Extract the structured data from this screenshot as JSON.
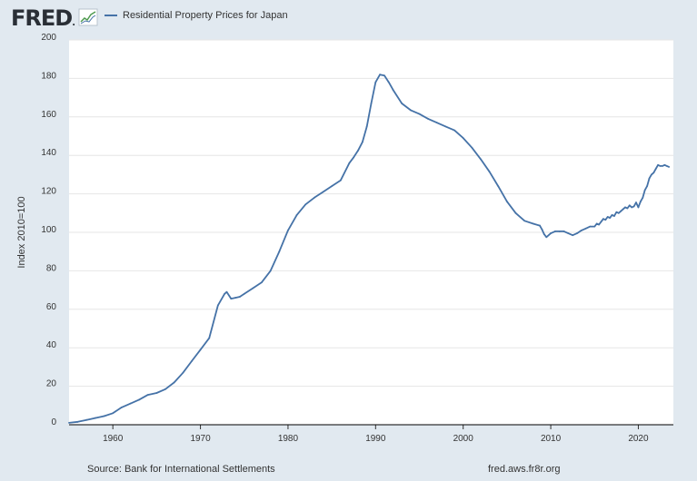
{
  "header": {
    "logo_text": "FRED",
    "legend_label": "Residential Property Prices for Japan",
    "series_color": "#4572a7"
  },
  "footer": {
    "source": "Source: Bank for International Settlements",
    "site": "fred.aws.fr8r.org"
  },
  "chart_data": {
    "type": "line",
    "title": "Residential Property Prices for Japan",
    "xlabel": "",
    "ylabel": "Index 2010=100",
    "xlim": [
      1955,
      2024
    ],
    "ylim": [
      0,
      200
    ],
    "x_ticks": [
      "1960",
      "1970",
      "1980",
      "1990",
      "2000",
      "2010",
      "2020"
    ],
    "y_ticks": [
      "0",
      "20",
      "40",
      "60",
      "80",
      "100",
      "120",
      "140",
      "160",
      "180",
      "200"
    ],
    "grid": true,
    "legend": "top-left",
    "series": [
      {
        "name": "Residential Property Prices for Japan",
        "color": "#4572a7",
        "x": [
          1955,
          1956,
          1957,
          1958,
          1959,
          1960,
          1961,
          1962,
          1963,
          1964,
          1965,
          1966,
          1967,
          1968,
          1969,
          1970,
          1971,
          1972,
          1972.75,
          1973,
          1973.5,
          1974,
          1974.5,
          1975,
          1976,
          1977,
          1978,
          1979,
          1980,
          1981,
          1982,
          1983,
          1984,
          1985,
          1986,
          1987,
          1987.5,
          1988,
          1988.5,
          1989,
          1989.5,
          1990,
          1990.5,
          1991,
          1991.5,
          1992,
          1993,
          1994,
          1995,
          1996,
          1997,
          1998,
          1999,
          2000,
          2001,
          2002,
          2003,
          2004,
          2005,
          2006,
          2007,
          2008,
          2008.75,
          2009,
          2009.25,
          2009.5,
          2010,
          2010.5,
          2011,
          2011.5,
          2012,
          2012.5,
          2013,
          2013.5,
          2014,
          2014.5,
          2015,
          2015.25,
          2015.5,
          2015.75,
          2016,
          2016.25,
          2016.5,
          2016.75,
          2017,
          2017.25,
          2017.5,
          2017.75,
          2018,
          2018.25,
          2018.5,
          2018.75,
          2019,
          2019.25,
          2019.5,
          2019.75,
          2020,
          2020.25,
          2020.5,
          2020.75,
          2021,
          2021.25,
          2021.5,
          2021.75,
          2022,
          2022.25,
          2022.5,
          2022.75,
          2023,
          2023.25,
          2023.5
        ],
        "values": [
          1,
          1.5,
          2.5,
          3.5,
          4.5,
          6,
          9,
          11,
          13,
          15.5,
          16.5,
          18.5,
          22,
          27,
          33,
          39,
          45,
          62,
          68,
          69,
          65.5,
          66,
          66.5,
          68,
          71,
          74,
          80,
          90,
          101,
          109,
          114.5,
          118,
          121,
          124,
          127,
          136,
          139,
          142.5,
          147,
          155,
          167,
          178,
          182,
          181.5,
          178,
          174,
          167,
          163.5,
          161.5,
          159,
          157,
          155,
          153,
          149,
          144,
          138,
          131.5,
          124,
          116,
          110,
          106,
          104.5,
          103.5,
          101.5,
          99,
          97.5,
          99.5,
          100.5,
          100.5,
          100.5,
          99.5,
          98.5,
          99.5,
          101,
          102,
          103,
          103,
          104.5,
          104,
          105.5,
          107,
          106.5,
          108,
          107.5,
          109,
          108.5,
          110.5,
          110,
          111,
          112,
          113,
          112.5,
          114,
          113,
          113.5,
          115.5,
          113,
          116,
          118,
          122,
          124,
          128,
          130,
          131,
          133,
          135,
          134.5,
          134.5,
          135,
          134.5,
          134
        ]
      }
    ]
  }
}
